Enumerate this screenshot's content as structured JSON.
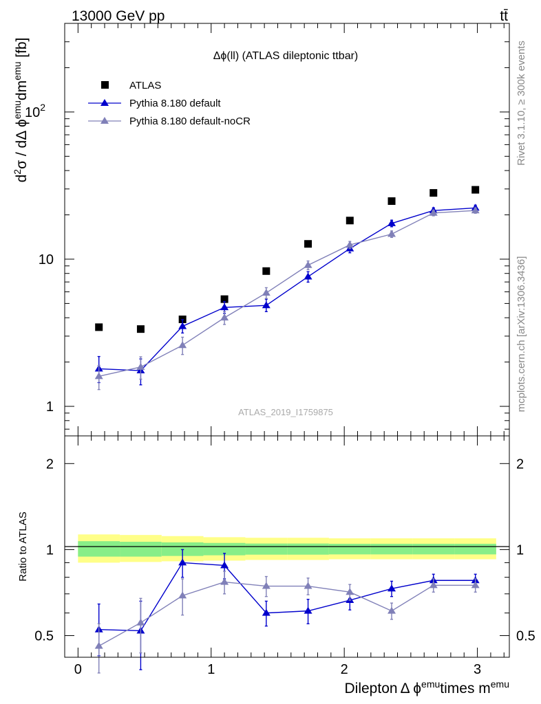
{
  "header": {
    "left": "13000 GeV pp",
    "right": "tt̄"
  },
  "side_labels": {
    "rivet": "Rivet 3.1.10, ≥ 300k events",
    "mcplots": "mcplots.cern.ch [arXiv:1306.3436]"
  },
  "colors": {
    "data": "#000000",
    "default": "#0000cc",
    "nocr": "#8080b8",
    "band_inner": "#88ee88",
    "band_outer": "#ffff88"
  },
  "chart_data": [
    {
      "type": "scatter",
      "title": "Δϕ(ll) (ATLAS dileptonic ttbar)",
      "watermark": "ATLAS_2019_I1759875",
      "ylabel_parts": {
        "d": "d",
        "sup2": "2",
        "sigma": "σ / dΔ ϕ",
        "sup_emu1": "emu",
        "dm": "dm",
        "sup_emu2": "emu",
        "unit": " [fb]"
      },
      "yscale": "log",
      "ylim": [
        0.63,
        400
      ],
      "xlim": [
        -0.1,
        3.24
      ],
      "ytick_labels": [
        {
          "value": 1,
          "label": "1"
        },
        {
          "value": 10,
          "label": "10"
        },
        {
          "value": 100,
          "label": "10",
          "sup": "2"
        }
      ],
      "legend": [
        {
          "key": "data",
          "label": "ATLAS"
        },
        {
          "key": "default",
          "label": "Pythia 8.180 default"
        },
        {
          "key": "nocr",
          "label": "Pythia 8.180 default-noCR"
        }
      ],
      "x": [
        0.157,
        0.471,
        0.785,
        1.1,
        1.414,
        1.728,
        2.042,
        2.356,
        2.67,
        2.985
      ],
      "series": [
        {
          "name": "ATLAS",
          "key": "data",
          "marker": "square",
          "values": [
            3.45,
            3.35,
            3.9,
            5.35,
            8.3,
            12.7,
            18.3,
            24.8,
            28.2,
            29.6
          ]
        },
        {
          "name": "Pythia 8.180 default",
          "key": "default",
          "marker": "triangle",
          "values": [
            1.8,
            1.75,
            3.5,
            4.7,
            4.85,
            7.6,
            11.8,
            17.5,
            21.4,
            22.3
          ],
          "err_up": [
            0.38,
            0.35,
            0.38,
            0.45,
            0.5,
            0.62,
            0.78,
            0.9,
            0.95,
            0.98
          ],
          "err_down": [
            0.35,
            0.35,
            0.35,
            0.42,
            0.45,
            0.62,
            0.75,
            0.9,
            0.95,
            0.98
          ]
        },
        {
          "name": "Pythia 8.180 default-noCR",
          "key": "nocr",
          "marker": "triangle",
          "values": [
            1.6,
            1.85,
            2.6,
            4.0,
            5.9,
            9.1,
            12.5,
            14.8,
            20.6,
            21.4
          ],
          "err_up": [
            0.3,
            0.32,
            0.35,
            0.4,
            0.5,
            0.62,
            0.7,
            0.75,
            0.9,
            0.9
          ],
          "err_down": [
            0.3,
            0.32,
            0.35,
            0.4,
            0.5,
            0.62,
            0.7,
            0.75,
            0.9,
            0.9
          ]
        }
      ]
    },
    {
      "type": "scatter",
      "ylabel": "Ratio to ATLAS",
      "xlabel_parts": {
        "main": "Dilepton",
        "delta": "Δ ϕ",
        "sup1": "emu",
        "mid": "times m",
        "sup2": "emu"
      },
      "yscale": "log",
      "ylim": [
        0.42,
        2.5
      ],
      "xlim": [
        -0.1,
        3.24
      ],
      "ytick_labels": [
        {
          "value": 0.5,
          "label": "0.5"
        },
        {
          "value": 1,
          "label": "1"
        },
        {
          "value": 2,
          "label": "2"
        }
      ],
      "xtick_labels": [
        {
          "value": 0,
          "label": "0"
        },
        {
          "value": 1,
          "label": "1"
        },
        {
          "value": 2,
          "label": "2"
        },
        {
          "value": 3,
          "label": "3"
        }
      ],
      "band_edges": [
        0.0,
        0.314,
        0.628,
        0.942,
        1.257,
        1.571,
        1.885,
        2.199,
        2.513,
        2.827,
        3.141
      ],
      "band_inner": [
        [
          0.945,
          1.07
        ],
        [
          0.945,
          1.065
        ],
        [
          0.95,
          1.06
        ],
        [
          0.955,
          1.055
        ],
        [
          0.96,
          1.05
        ],
        [
          0.96,
          1.05
        ],
        [
          0.962,
          1.048
        ],
        [
          0.962,
          1.048
        ],
        [
          0.962,
          1.048
        ],
        [
          0.962,
          1.048
        ]
      ],
      "band_outer": [
        [
          0.9,
          1.13
        ],
        [
          0.905,
          1.125
        ],
        [
          0.91,
          1.115
        ],
        [
          0.915,
          1.105
        ],
        [
          0.92,
          1.1
        ],
        [
          0.92,
          1.1
        ],
        [
          0.925,
          1.095
        ],
        [
          0.925,
          1.095
        ],
        [
          0.925,
          1.095
        ],
        [
          0.925,
          1.095
        ]
      ],
      "x": [
        0.157,
        0.471,
        0.785,
        1.1,
        1.414,
        1.728,
        2.042,
        2.356,
        2.67,
        2.985
      ],
      "series": [
        {
          "name": "Pythia 8.180 default",
          "key": "default",
          "values": [
            0.525,
            0.52,
            0.9,
            0.88,
            0.6,
            0.61,
            0.665,
            0.73,
            0.78,
            0.78
          ],
          "err_up": [
            0.12,
            0.14,
            0.1,
            0.09,
            0.06,
            0.06,
            0.05,
            0.045,
            0.04,
            0.04
          ],
          "err_down": [
            0.1,
            0.14,
            0.1,
            0.09,
            0.06,
            0.06,
            0.05,
            0.045,
            0.04,
            0.04
          ]
        },
        {
          "name": "Pythia 8.180 default-noCR",
          "key": "nocr",
          "values": [
            0.46,
            0.555,
            0.69,
            0.77,
            0.745,
            0.745,
            0.71,
            0.61,
            0.75,
            0.75
          ],
          "err_up": [
            0.09,
            0.12,
            0.1,
            0.07,
            0.06,
            0.05,
            0.045,
            0.04,
            0.04,
            0.04
          ],
          "err_down": [
            0.09,
            0.12,
            0.1,
            0.07,
            0.06,
            0.05,
            0.045,
            0.04,
            0.04,
            0.04
          ]
        }
      ]
    }
  ]
}
